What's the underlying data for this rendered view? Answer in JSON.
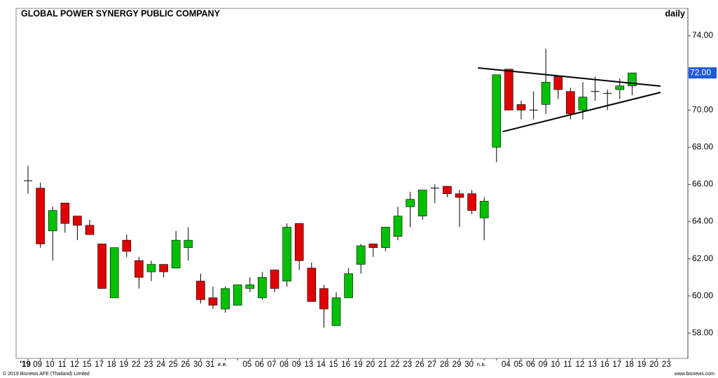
{
  "chart_data": {
    "type": "candlestick",
    "title": "GLOBAL POWER SYNERGY PUBLIC COMPANY",
    "period": "daily",
    "footer_left": "© 2019 Bisnews AFE (Thailand) Limited",
    "footer_right": "www.bisnews.com",
    "categories": [
      "'19",
      "09",
      "10",
      "11",
      "12",
      "15",
      "17",
      "18",
      "19",
      "22",
      "23",
      "24",
      "25",
      "26",
      "30",
      "31",
      "ส.ค.",
      null,
      "05",
      "06",
      "07",
      "08",
      "09",
      "13",
      "14",
      "15",
      "16",
      "19",
      "20",
      "21",
      "22",
      "23",
      "26",
      "27",
      "28",
      "29",
      "30",
      "ก.ย.",
      null,
      "04",
      "05",
      "06",
      "09",
      "10",
      "11",
      "12",
      "13",
      "16",
      "17",
      "18",
      "19",
      "20",
      "23"
    ],
    "open": [
      66.2,
      65.8,
      63.5,
      65.0,
      64.3,
      63.8,
      62.8,
      59.9,
      63.0,
      61.9,
      61.3,
      61.7,
      61.5,
      62.6,
      60.8,
      59.9,
      59.3,
      59.5,
      60.4,
      59.9,
      61.4,
      60.8,
      63.9,
      61.5,
      60.4,
      58.4,
      59.9,
      61.7,
      62.8,
      62.6,
      63.2,
      64.8,
      64.3,
      65.8,
      65.9,
      65.5,
      65.5,
      64.2,
      68.0,
      72.2,
      70.3,
      70.0,
      70.3,
      71.8,
      71.0,
      70.0,
      71.0,
      70.9,
      71.1,
      71.3,
      null,
      null,
      null
    ],
    "high": [
      67.0,
      66.1,
      64.8,
      65.0,
      64.3,
      64.1,
      62.8,
      62.6,
      63.3,
      62.1,
      61.9,
      61.7,
      63.5,
      63.7,
      61.2,
      60.5,
      60.5,
      60.6,
      61.0,
      61.3,
      61.4,
      63.9,
      63.9,
      61.8,
      60.6,
      60.2,
      61.5,
      62.8,
      62.8,
      63.7,
      64.8,
      65.6,
      65.7,
      66.0,
      65.9,
      65.7,
      65.7,
      65.3,
      71.9,
      72.2,
      70.5,
      71.0,
      73.3,
      71.8,
      71.2,
      71.5,
      71.8,
      71.1,
      71.7,
      72.0,
      null,
      null,
      null
    ],
    "low": [
      65.5,
      62.6,
      61.9,
      63.4,
      63.0,
      63.3,
      60.4,
      59.9,
      62.1,
      60.4,
      60.8,
      61.0,
      61.5,
      61.9,
      59.6,
      59.3,
      59.1,
      59.5,
      60.2,
      59.8,
      60.2,
      60.5,
      61.4,
      59.7,
      58.3,
      58.4,
      59.9,
      61.2,
      62.1,
      62.4,
      63.0,
      63.7,
      64.1,
      65.0,
      65.3,
      63.7,
      64.4,
      63.0,
      67.2,
      70.0,
      69.5,
      69.5,
      69.8,
      70.6,
      69.5,
      69.5,
      70.5,
      70.0,
      70.6,
      70.8,
      null,
      null,
      null
    ],
    "close": [
      66.2,
      62.8,
      64.6,
      63.9,
      63.8,
      63.3,
      60.4,
      62.6,
      62.4,
      61.0,
      61.7,
      61.3,
      63.0,
      63.0,
      59.8,
      59.5,
      60.4,
      60.6,
      60.6,
      61.0,
      60.4,
      63.7,
      61.9,
      59.7,
      59.3,
      59.9,
      61.2,
      62.7,
      62.6,
      63.7,
      64.3,
      65.2,
      65.7,
      65.8,
      65.5,
      65.3,
      64.6,
      65.1,
      71.9,
      70.0,
      70.0,
      70.0,
      71.5,
      71.1,
      69.8,
      70.7,
      71.0,
      70.9,
      71.3,
      72.0,
      null,
      null,
      null
    ],
    "up_color": "#00c000",
    "down_color": "#e00000",
    "ylim": [
      56.64,
      75.47
    ],
    "yticks": [
      {
        "value": 58,
        "label": "58.00"
      },
      {
        "value": 60,
        "label": "60.00"
      },
      {
        "value": 62,
        "label": "62.00"
      },
      {
        "value": 64,
        "label": "64.00"
      },
      {
        "value": 66,
        "label": "66.00"
      },
      {
        "value": 68,
        "label": "68.00"
      },
      {
        "value": 70,
        "label": "70.00"
      },
      {
        "value": 72,
        "label": "72.00"
      },
      {
        "value": 74,
        "label": "74.00"
      }
    ],
    "last_price": {
      "value": 72.0,
      "label": "72.00",
      "color": "#1e5bd6"
    },
    "trendlines": [
      {
        "x": [
          36.5,
          51.3
        ],
        "y": [
          72.27,
          71.29
        ],
        "color": "#000000"
      },
      {
        "x": [
          38.5,
          51.3
        ],
        "y": [
          68.84,
          70.95
        ],
        "color": "#000000"
      }
    ]
  }
}
